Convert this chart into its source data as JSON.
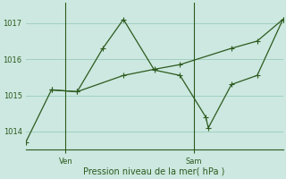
{
  "xlabel": "Pression niveau de la mer( hPa )",
  "bg_color": "#cce8e0",
  "grid_color": "#99ccbb",
  "line_color": "#2d5a1e",
  "ylim": [
    1013.5,
    1017.55
  ],
  "xlim": [
    0,
    10
  ],
  "jagged_x": [
    0,
    1,
    2,
    3,
    3.8,
    5,
    6,
    7,
    7.1,
    8,
    9,
    10
  ],
  "jagged_y": [
    1013.7,
    1015.15,
    1015.1,
    1016.3,
    1017.1,
    1015.7,
    1015.55,
    1014.4,
    1014.1,
    1015.3,
    1015.55,
    1017.1
  ],
  "trend_x": [
    1,
    2,
    3.8,
    5,
    6,
    8,
    9,
    10
  ],
  "trend_y": [
    1015.15,
    1015.1,
    1015.55,
    1015.72,
    1015.85,
    1016.3,
    1016.5,
    1017.1
  ],
  "ven_x": 1.55,
  "sam_x": 6.55,
  "yticks": [
    1014,
    1015,
    1016,
    1017
  ],
  "linewidth": 0.9,
  "marker_size": 4
}
